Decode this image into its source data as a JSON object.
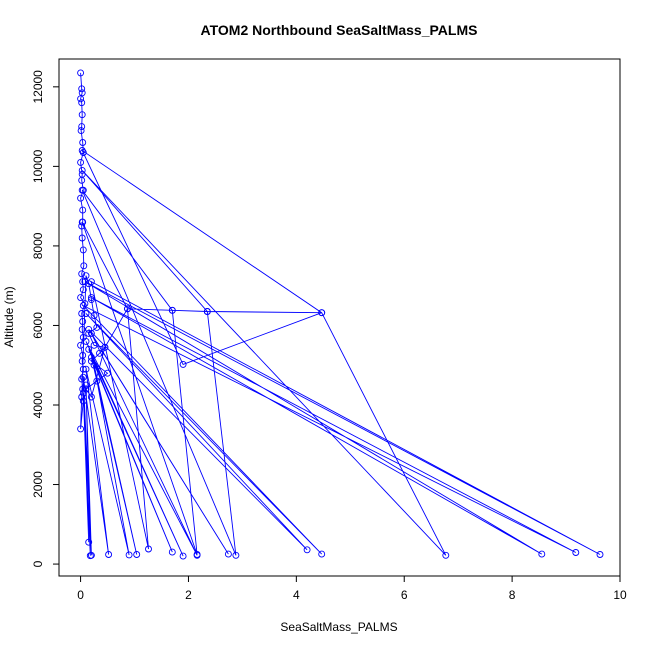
{
  "chart_data": {
    "type": "line",
    "title": "ATOM2 Northbound SeaSaltMass_PALMS",
    "xlabel": "SeaSaltMass_PALMS",
    "ylabel": "Altitude (m)",
    "xlim": [
      -0.4,
      10.0
    ],
    "ylim": [
      -300,
      12700
    ],
    "xticks": [
      0,
      2,
      4,
      6,
      8,
      10
    ],
    "yticks": [
      0,
      2000,
      4000,
      6000,
      8000,
      10000,
      12000
    ],
    "grid": false,
    "legend": "none",
    "series": [
      {
        "color": "#0000ff",
        "marker": "open-circle",
        "points": [
          [
            0.0,
            12350
          ],
          [
            0.02,
            11950
          ],
          [
            0.03,
            11850
          ],
          [
            0.0,
            11700
          ],
          [
            0.02,
            11600
          ],
          [
            0.03,
            11300
          ],
          [
            0.02,
            11000
          ],
          [
            0.01,
            10900
          ],
          [
            0.04,
            10600
          ],
          [
            0.05,
            10350
          ],
          [
            0.0,
            10100
          ],
          [
            0.03,
            9800
          ],
          [
            0.02,
            9650
          ],
          [
            0.05,
            9400
          ],
          [
            0.0,
            9200
          ],
          [
            0.04,
            8900
          ],
          [
            0.04,
            8600
          ],
          [
            0.02,
            8500
          ],
          [
            0.03,
            8200
          ],
          [
            0.05,
            7900
          ],
          [
            0.06,
            7500
          ],
          [
            0.02,
            7300
          ],
          [
            0.04,
            7100
          ],
          [
            0.05,
            6900
          ],
          [
            0.0,
            6700
          ],
          [
            0.08,
            6550
          ],
          [
            0.02,
            6300
          ],
          [
            0.04,
            6100
          ],
          [
            0.03,
            5900
          ],
          [
            0.05,
            5700
          ],
          [
            0.0,
            5500
          ],
          [
            0.04,
            5250
          ],
          [
            0.03,
            5100
          ],
          [
            0.05,
            4900
          ],
          [
            0.02,
            4650
          ],
          [
            0.04,
            4400
          ],
          [
            0.02,
            4200
          ],
          [
            0.05,
            4100
          ],
          [
            0.0,
            3400
          ],
          [
            0.1,
            7250
          ],
          [
            0.15,
            7050
          ],
          [
            0.2,
            6650
          ],
          [
            0.25,
            6250
          ],
          [
            0.3,
            5950
          ],
          [
            0.15,
            5800
          ],
          [
            0.25,
            5500
          ],
          [
            0.45,
            5450
          ],
          [
            0.35,
            5300
          ],
          [
            0.2,
            5100
          ],
          [
            0.5,
            4800
          ],
          [
            0.3,
            4600
          ],
          [
            0.1,
            4400
          ],
          [
            0.2,
            4200
          ],
          [
            0.45,
            5450
          ],
          [
            0.87,
            6420
          ],
          [
            1.7,
            6380
          ],
          [
            2.35,
            6350
          ],
          [
            4.47,
            6320
          ],
          [
            1.9,
            5020
          ],
          [
            0.03,
            10400
          ],
          [
            4.47,
            6320
          ],
          [
            6.77,
            220
          ],
          [
            0.03,
            9900
          ],
          [
            2.35,
            6350
          ],
          [
            2.88,
            220
          ],
          [
            0.03,
            9400
          ],
          [
            1.7,
            6380
          ],
          [
            2.16,
            240
          ],
          [
            0.03,
            8600
          ],
          [
            0.87,
            6420
          ],
          [
            1.26,
            380
          ],
          [
            0.2,
            7100
          ],
          [
            9.63,
            240
          ],
          [
            0.08,
            7100
          ],
          [
            8.55,
            250
          ],
          [
            0.2,
            6700
          ],
          [
            9.18,
            290
          ],
          [
            0.05,
            6500
          ],
          [
            4.47,
            250
          ],
          [
            0.1,
            6300
          ],
          [
            4.2,
            360
          ],
          [
            0.15,
            5900
          ],
          [
            2.74,
            250
          ],
          [
            0.2,
            5800
          ],
          [
            2.16,
            220
          ],
          [
            0.1,
            5600
          ],
          [
            1.9,
            200
          ],
          [
            0.15,
            5400
          ],
          [
            1.7,
            300
          ],
          [
            0.2,
            5200
          ],
          [
            1.04,
            240
          ],
          [
            0.25,
            5000
          ],
          [
            0.9,
            230
          ],
          [
            0.1,
            4900
          ],
          [
            0.52,
            240
          ],
          [
            0.05,
            4700
          ],
          [
            0.2,
            220
          ],
          [
            0.1,
            4500
          ],
          [
            0.18,
            210
          ],
          [
            0.05,
            4300
          ],
          [
            0.15,
            550
          ]
        ]
      }
    ]
  }
}
